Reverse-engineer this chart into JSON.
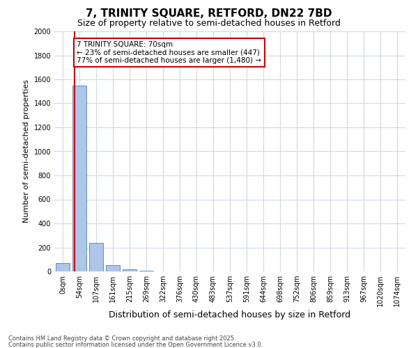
{
  "title1": "7, TRINITY SQUARE, RETFORD, DN22 7BD",
  "title2": "Size of property relative to semi-detached houses in Retford",
  "xlabel": "Distribution of semi-detached houses by size in Retford",
  "ylabel": "Number of semi-detached properties",
  "bar_labels": [
    "0sqm",
    "54sqm",
    "107sqm",
    "161sqm",
    "215sqm",
    "269sqm",
    "322sqm",
    "376sqm",
    "430sqm",
    "483sqm",
    "537sqm",
    "591sqm",
    "644sqm",
    "698sqm",
    "752sqm",
    "806sqm",
    "859sqm",
    "913sqm",
    "967sqm",
    "1020sqm",
    "1074sqm"
  ],
  "bar_values": [
    70,
    1550,
    240,
    55,
    20,
    5,
    0,
    0,
    0,
    0,
    0,
    0,
    0,
    0,
    0,
    0,
    0,
    0,
    0,
    0,
    0
  ],
  "bar_color": "#aec6e8",
  "bar_edge_color": "#5a8fc0",
  "property_line_x": 0.7,
  "annotation_text": "7 TRINITY SQUARE: 70sqm\n← 23% of semi-detached houses are smaller (447)\n77% of semi-detached houses are larger (1,480) →",
  "annotation_box_color": "#ffffff",
  "annotation_box_edge": "#cc0000",
  "red_line_color": "#cc0000",
  "ylim": [
    0,
    2000
  ],
  "yticks": [
    0,
    200,
    400,
    600,
    800,
    1000,
    1200,
    1400,
    1600,
    1800,
    2000
  ],
  "background_color": "#ffffff",
  "grid_color": "#d0d8e8",
  "footer1": "Contains HM Land Registry data © Crown copyright and database right 2025.",
  "footer2": "Contains public sector information licensed under the Open Government Licence v3.0."
}
